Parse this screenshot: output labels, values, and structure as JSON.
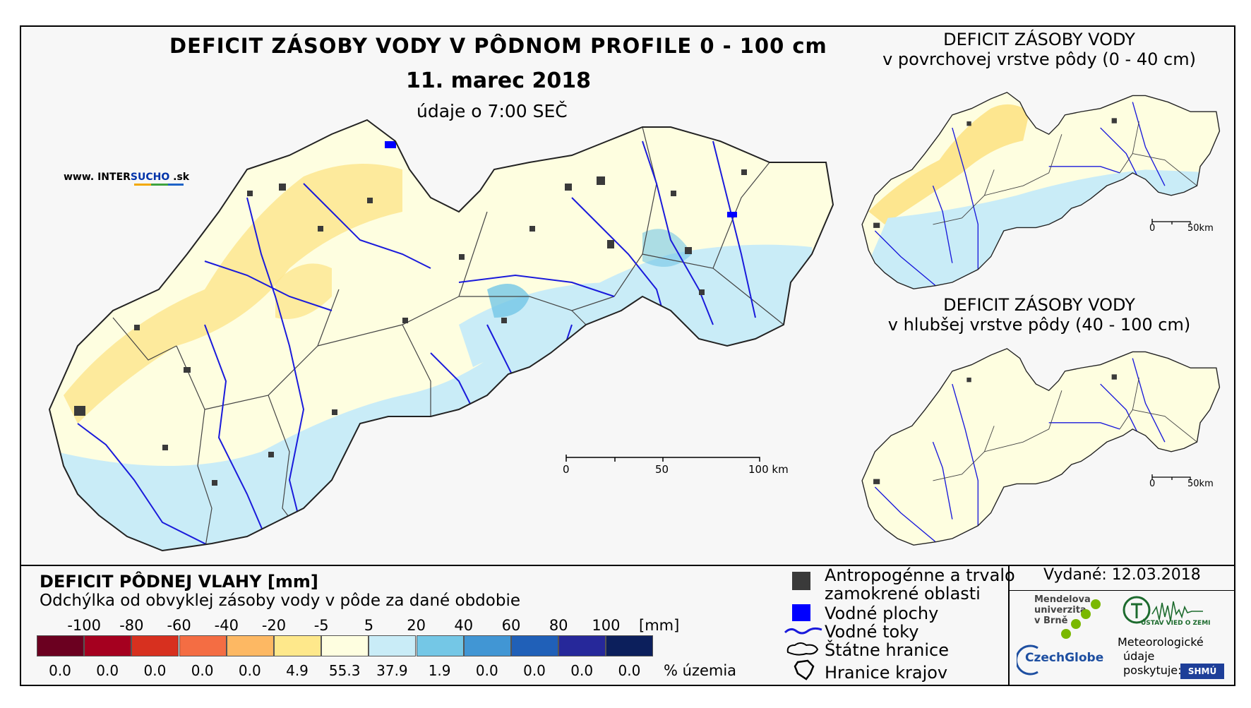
{
  "main_map": {
    "title": "DEFICIT ZÁSOBY VODY V PÔDNOM PROFILE 0 - 100 cm",
    "date": "11. marec 2018",
    "time": "údaje o 7:00 SEČ",
    "brand": {
      "prefix": "www. INTER",
      "highlight": "SUCHO",
      "suffix": " .sk"
    },
    "scale": {
      "labels": [
        "0",
        "50",
        "100 km"
      ]
    }
  },
  "inset_top": {
    "title_line1": "DEFICIT ZÁSOBY VODY",
    "title_line2": "v povrchovej vrstve pôdy (0 - 40 cm)",
    "scale": {
      "labels": [
        "0",
        "50km"
      ]
    }
  },
  "inset_bottom": {
    "title_line1": "DEFICIT ZÁSOBY VODY",
    "title_line2": "v hlubšej vrstve pôdy (40 - 100 cm)",
    "scale": {
      "labels": [
        "0",
        "50km"
      ]
    }
  },
  "legend": {
    "title": "DEFICIT PÔDNEJ VLAHY [mm]",
    "subtitle": "Odchýlka od obvyklej zásoby vody v pôde za dané obdobie",
    "ticks": [
      "-100",
      "-80",
      "-60",
      "-40",
      "-20",
      "-5",
      "5",
      "20",
      "40",
      "60",
      "80",
      "100"
    ],
    "unit": "[mm]",
    "colors": [
      "#6b0020",
      "#a5001f",
      "#d7301f",
      "#f46d43",
      "#fdb863",
      "#fee88b",
      "#fefee0",
      "#c9ecf7",
      "#74c7e6",
      "#4196d4",
      "#2060b8",
      "#26289a",
      "#0c1f5c"
    ],
    "percentages": [
      "0.0",
      "0.0",
      "0.0",
      "0.0",
      "0.0",
      "4.9",
      "55.3",
      "37.9",
      "1.9",
      "0.0",
      "0.0",
      "0.0",
      "0.0"
    ],
    "percent_unit": "% územia"
  },
  "symbols": {
    "urban_line1": "Antropogénne a trvalo",
    "urban_line2": "zamokrené oblasti",
    "water_bodies": "Vodné plochy",
    "rivers": "Vodné toky",
    "state_border": "Štátne hranice",
    "region_border": "Hranice krajov",
    "colors": {
      "urban": "#3a3a3a",
      "water": "#0000ff",
      "river": "#1a1adb"
    }
  },
  "footer": {
    "issued": "Vydané: 12.03.2018",
    "mendel_line1": "Mendelova",
    "mendel_line2": "univerzita",
    "mendel_line3": "v Brně",
    "czechglobe": "CzechGlobe",
    "ustav": "ÚSTAV VIED O ZEMI",
    "met_line1": "Meteorologické",
    "met_line2": "údaje",
    "met_line3": "poskytuje:",
    "shmu": "SHMÚ"
  }
}
